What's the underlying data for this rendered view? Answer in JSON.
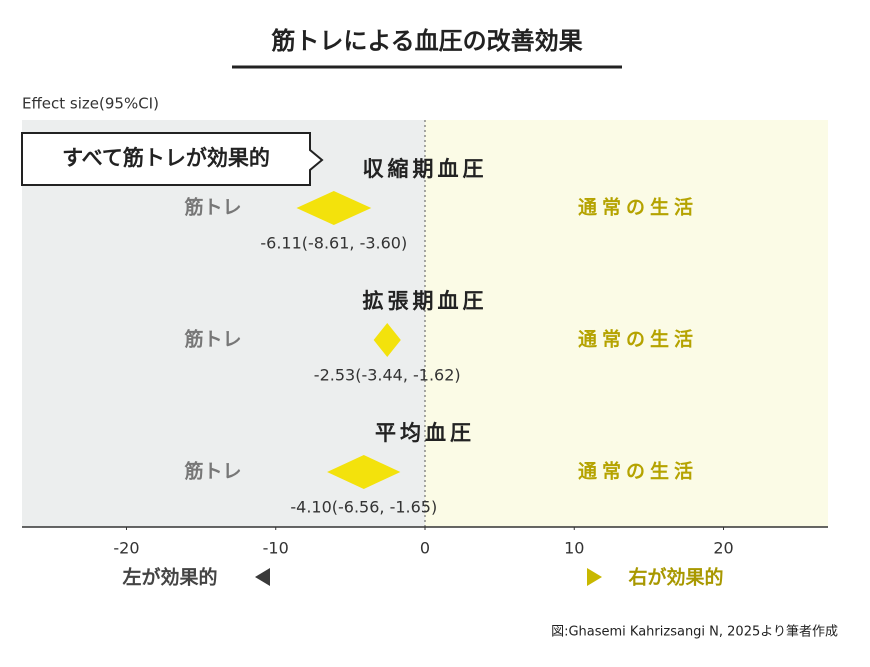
{
  "chart_data": {
    "type": "forest",
    "title": "筋トレによる血圧の改善効果",
    "x_label": "Effect size(95%CI)",
    "callout": "すべて筋トレが効果的",
    "left_label": "筋トレ",
    "right_label": "通常の生活",
    "left_better": "左が効果的",
    "right_better": "右が効果的",
    "source": "図:Ghasemi Kahrizsangi N, 2025より筆者作成",
    "xlim": [
      -27,
      27
    ],
    "xticks": [
      -20,
      -10,
      0,
      10,
      20
    ],
    "color": "#f3e20c",
    "rows": [
      {
        "name": "収縮期血圧",
        "estimate": -6.11,
        "lower": -8.61,
        "upper": -3.6,
        "value_label": "-6.11(-8.61, -3.60)"
      },
      {
        "name": "拡張期血圧",
        "estimate": -2.53,
        "lower": -3.44,
        "upper": -1.62,
        "value_label": "-2.53(-3.44, -1.62)"
      },
      {
        "name": "平均血圧",
        "estimate": -4.1,
        "lower": -6.56,
        "upper": -1.65,
        "value_label": "-4.10(-6.56, -1.65)"
      }
    ]
  }
}
